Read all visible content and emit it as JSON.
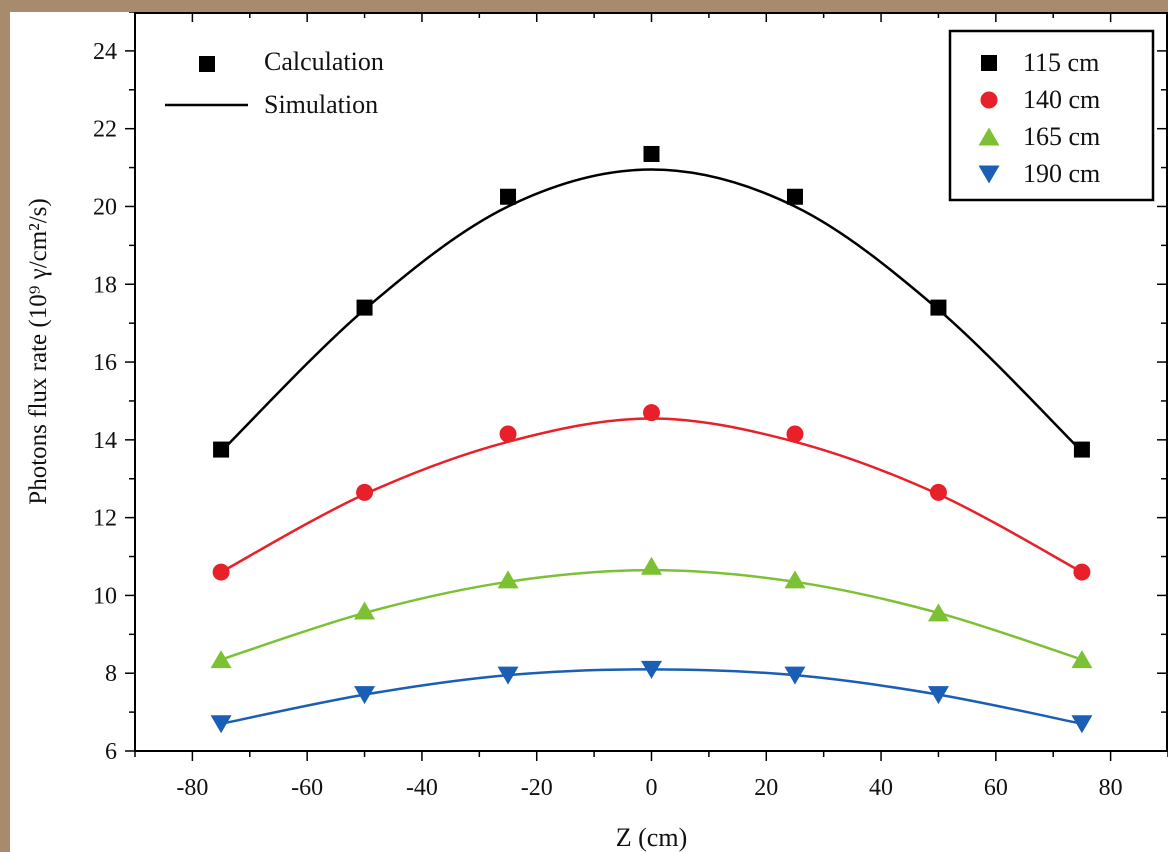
{
  "chart_data": {
    "type": "line",
    "xlabel": "Z (cm)",
    "ylabel": "Photons flux rate (10⁹ γ/cm²/s)",
    "xlim": [
      -90,
      90
    ],
    "ylim": [
      6,
      25
    ],
    "xticks": [
      "-80",
      "-60",
      "-40",
      "-20",
      "0",
      "20",
      "40",
      "60",
      "80"
    ],
    "yticks": [
      "6",
      "8",
      "10",
      "12",
      "14",
      "16",
      "18",
      "20",
      "22",
      "24"
    ],
    "x": [
      -75,
      -50,
      -25,
      0,
      25,
      50,
      75
    ],
    "style_legend": {
      "markers_label": "Calculation",
      "line_label": "Simulation",
      "placement": "top-left"
    },
    "legend_placement": "top-right",
    "series": [
      {
        "name": "115 cm",
        "color": "#000000",
        "marker": "square",
        "calculation": [
          13.75,
          17.4,
          20.25,
          21.35,
          20.25,
          17.4,
          13.75
        ],
        "simulation": [
          13.7,
          17.35,
          20.0,
          20.95,
          20.0,
          17.35,
          13.7
        ]
      },
      {
        "name": "140 cm",
        "color": "#e8202a",
        "marker": "circle",
        "calculation": [
          10.6,
          12.65,
          14.15,
          14.7,
          14.15,
          12.65,
          10.6
        ],
        "simulation": [
          10.6,
          12.6,
          13.95,
          14.55,
          13.95,
          12.6,
          10.6
        ]
      },
      {
        "name": "165 cm",
        "color": "#7cc133",
        "marker": "triangle-up",
        "calculation": [
          8.35,
          9.6,
          10.4,
          10.75,
          10.4,
          9.55,
          8.35
        ],
        "simulation": [
          8.35,
          9.55,
          10.35,
          10.65,
          10.35,
          9.55,
          8.35
        ]
      },
      {
        "name": "190 cm",
        "color": "#1b5eb5",
        "marker": "triangle-down",
        "calculation": [
          6.7,
          7.45,
          7.95,
          8.1,
          7.95,
          7.45,
          6.7
        ],
        "simulation": [
          6.7,
          7.45,
          7.95,
          8.1,
          7.95,
          7.45,
          6.7
        ]
      }
    ]
  }
}
